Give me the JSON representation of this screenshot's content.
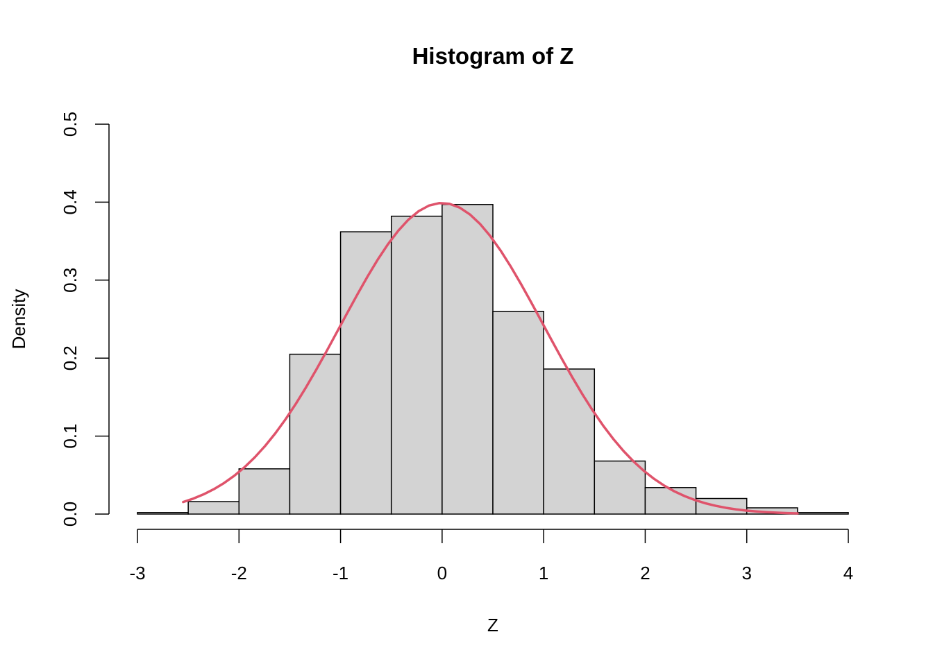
{
  "chart_data": {
    "type": "bar",
    "title": "Histogram of Z",
    "xlabel": "Z",
    "ylabel": "Density",
    "xlim": [
      -3,
      4
    ],
    "ylim": [
      0,
      0.5
    ],
    "x_ticks": [
      -3,
      -2,
      -1,
      0,
      1,
      2,
      3,
      4
    ],
    "x_tick_labels": [
      "-3",
      "-2",
      "-1",
      "0",
      "1",
      "2",
      "3",
      "4"
    ],
    "y_ticks": [
      0,
      0.1,
      0.2,
      0.3,
      0.4,
      0.5
    ],
    "y_tick_labels": [
      "0.0",
      "0.1",
      "0.2",
      "0.3",
      "0.4",
      "0.5"
    ],
    "grid": false,
    "bins": [
      {
        "start": -3.0,
        "end": -2.5,
        "density": 0.002
      },
      {
        "start": -2.5,
        "end": -2.0,
        "density": 0.016
      },
      {
        "start": -2.0,
        "end": -1.5,
        "density": 0.058
      },
      {
        "start": -1.5,
        "end": -1.0,
        "density": 0.205
      },
      {
        "start": -1.0,
        "end": -0.5,
        "density": 0.362
      },
      {
        "start": -0.5,
        "end": 0.0,
        "density": 0.382
      },
      {
        "start": 0.0,
        "end": 0.5,
        "density": 0.397
      },
      {
        "start": 0.5,
        "end": 1.0,
        "density": 0.26
      },
      {
        "start": 1.0,
        "end": 1.5,
        "density": 0.186
      },
      {
        "start": 1.5,
        "end": 2.0,
        "density": 0.068
      },
      {
        "start": 2.0,
        "end": 2.5,
        "density": 0.034
      },
      {
        "start": 2.5,
        "end": 3.0,
        "density": 0.02
      },
      {
        "start": 3.0,
        "end": 3.5,
        "density": 0.008
      },
      {
        "start": 3.5,
        "end": 4.0,
        "density": 0.002
      }
    ],
    "bar_fill": "#d3d3d3",
    "bar_stroke": "#000000",
    "curve": {
      "type": "line",
      "color": "#df536b",
      "x_from": -2.55,
      "x_to": 3.5,
      "mean": 0,
      "sd": 1
    }
  }
}
